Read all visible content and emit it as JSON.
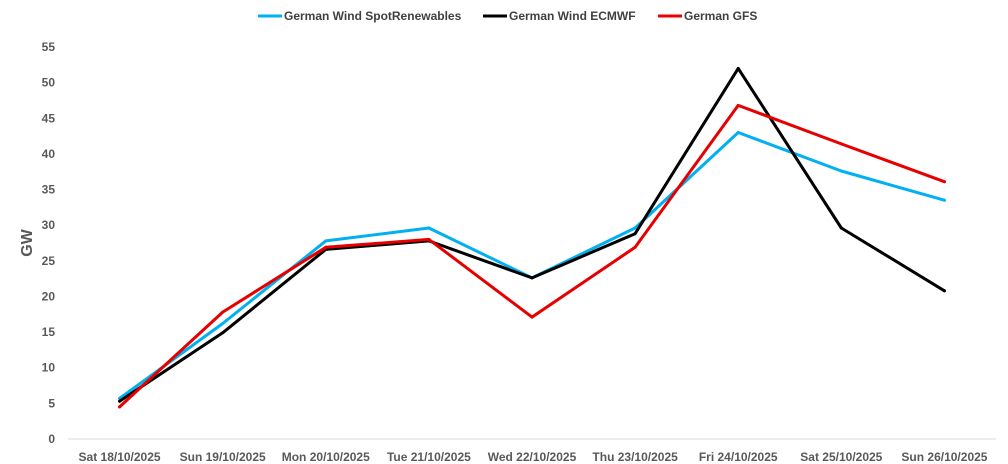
{
  "chart_data": {
    "type": "line",
    "title": "",
    "xlabel": "",
    "ylabel": "GW",
    "ylim": [
      0,
      55
    ],
    "yticks": [
      0,
      5,
      10,
      15,
      20,
      25,
      30,
      35,
      40,
      45,
      50,
      55
    ],
    "grid": false,
    "legend_position": "top",
    "categories": [
      "Sat 18/10/2025",
      "Sun 19/10/2025",
      "Mon 20/10/2025",
      "Tue 21/10/2025",
      "Wed 22/10/2025",
      "Thu 23/10/2025",
      "Fri 24/10/2025",
      "Sat 25/10/2025",
      "Sun 26/10/2025"
    ],
    "series": [
      {
        "name": "German Wind SpotRenewables",
        "color": "#00B0F0",
        "values": [
          5.7,
          16.2,
          27.8,
          29.6,
          22.6,
          29.6,
          43.0,
          37.6,
          33.5
        ]
      },
      {
        "name": "German Wind ECMWF",
        "color": "#000000",
        "values": [
          5.3,
          14.9,
          26.6,
          27.8,
          22.6,
          28.8,
          52.0,
          29.6,
          20.8
        ]
      },
      {
        "name": "German GFS",
        "color": "#E60000",
        "values": [
          4.5,
          17.8,
          26.9,
          28.0,
          17.1,
          26.9,
          46.8,
          41.4,
          36.1
        ]
      }
    ]
  }
}
